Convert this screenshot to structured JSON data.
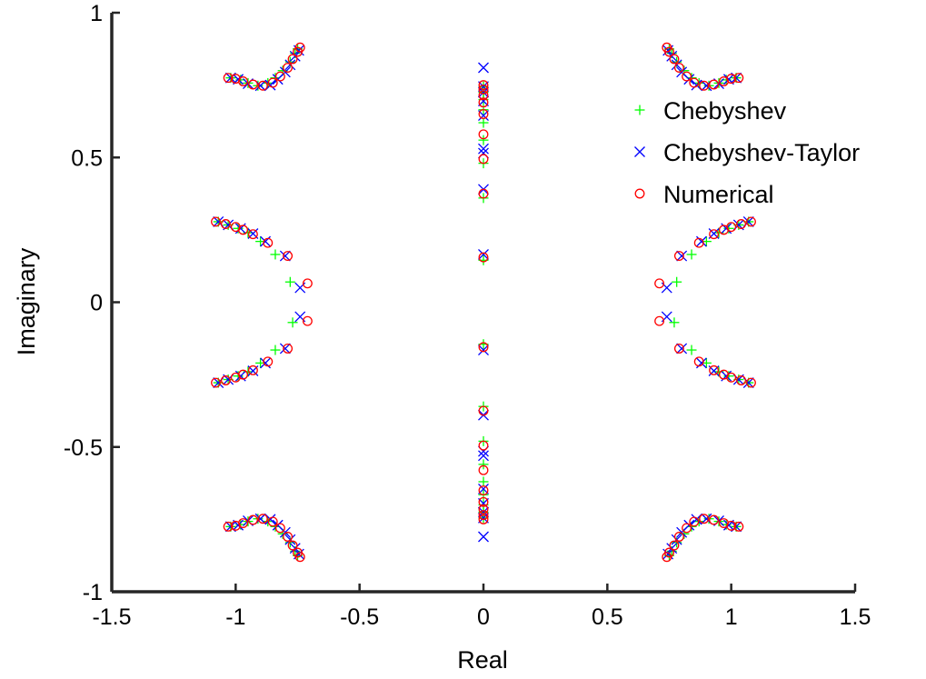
{
  "chart_data": {
    "type": "scatter",
    "title": "",
    "xlabel": "Real",
    "ylabel": "Imaginary",
    "xlim": [
      -1.5,
      1.5
    ],
    "ylim": [
      -1,
      1
    ],
    "xticks": [
      "-1.5",
      "-1",
      "-0.5",
      "0",
      "0.5",
      "1",
      "1.5"
    ],
    "yticks": [
      "-1",
      "-0.5",
      "0",
      "0.5",
      "1"
    ],
    "grid": false,
    "legend_placement": "top-right",
    "series": [
      {
        "name": "Chebyshev",
        "marker": "plus",
        "color": "#00ff00",
        "points": [
          [
            -1.02,
            0.775
          ],
          [
            -0.98,
            0.768
          ],
          [
            -0.95,
            0.757
          ],
          [
            -0.91,
            0.748
          ],
          [
            -0.87,
            0.757
          ],
          [
            -0.84,
            0.775
          ],
          [
            -0.81,
            0.8
          ],
          [
            -0.78,
            0.83
          ],
          [
            -0.76,
            0.86
          ],
          [
            -0.75,
            0.875
          ],
          [
            1.02,
            0.775
          ],
          [
            0.98,
            0.768
          ],
          [
            0.95,
            0.757
          ],
          [
            0.91,
            0.748
          ],
          [
            0.87,
            0.757
          ],
          [
            0.84,
            0.775
          ],
          [
            0.81,
            0.8
          ],
          [
            0.78,
            0.83
          ],
          [
            0.76,
            0.86
          ],
          [
            0.75,
            0.875
          ],
          [
            -1.02,
            -0.775
          ],
          [
            -0.98,
            -0.768
          ],
          [
            -0.95,
            -0.757
          ],
          [
            -0.91,
            -0.748
          ],
          [
            -0.87,
            -0.757
          ],
          [
            -0.84,
            -0.775
          ],
          [
            -0.81,
            -0.8
          ],
          [
            -0.78,
            -0.83
          ],
          [
            -0.76,
            -0.86
          ],
          [
            -0.75,
            -0.875
          ],
          [
            1.02,
            -0.775
          ],
          [
            0.98,
            -0.768
          ],
          [
            0.95,
            -0.757
          ],
          [
            0.91,
            -0.748
          ],
          [
            0.87,
            -0.757
          ],
          [
            0.84,
            -0.775
          ],
          [
            0.81,
            -0.8
          ],
          [
            0.78,
            -0.83
          ],
          [
            0.76,
            -0.86
          ],
          [
            0.75,
            -0.875
          ],
          [
            -1.07,
            0.278
          ],
          [
            -1.03,
            0.267
          ],
          [
            -0.99,
            0.255
          ],
          [
            -0.95,
            0.24
          ],
          [
            -0.9,
            0.21
          ],
          [
            -0.84,
            0.165
          ],
          [
            -0.78,
            0.07
          ],
          [
            -0.77,
            -0.07
          ],
          [
            -0.84,
            -0.165
          ],
          [
            -0.9,
            -0.21
          ],
          [
            -0.95,
            -0.24
          ],
          [
            -0.99,
            -0.255
          ],
          [
            -1.03,
            -0.267
          ],
          [
            -1.07,
            -0.278
          ],
          [
            1.07,
            0.278
          ],
          [
            1.03,
            0.267
          ],
          [
            0.99,
            0.255
          ],
          [
            0.95,
            0.24
          ],
          [
            0.9,
            0.21
          ],
          [
            0.84,
            0.165
          ],
          [
            0.78,
            0.07
          ],
          [
            0.77,
            -0.07
          ],
          [
            0.84,
            -0.165
          ],
          [
            0.9,
            -0.21
          ],
          [
            0.95,
            -0.24
          ],
          [
            0.99,
            -0.255
          ],
          [
            1.03,
            -0.267
          ],
          [
            1.07,
            -0.278
          ],
          [
            0,
            0.745
          ],
          [
            0,
            0.725
          ],
          [
            0,
            0.7
          ],
          [
            0,
            0.665
          ],
          [
            0,
            0.62
          ],
          [
            0,
            0.56
          ],
          [
            0,
            0.48
          ],
          [
            0,
            0.36
          ],
          [
            0,
            0.145
          ],
          [
            0,
            -0.745
          ],
          [
            0,
            -0.725
          ],
          [
            0,
            -0.7
          ],
          [
            0,
            -0.665
          ],
          [
            0,
            -0.62
          ],
          [
            0,
            -0.56
          ],
          [
            0,
            -0.48
          ],
          [
            0,
            -0.36
          ],
          [
            0,
            -0.145
          ]
        ]
      },
      {
        "name": "Chebyshev-Taylor",
        "marker": "x",
        "color": "#0000ff",
        "points": [
          [
            -1.02,
            0.775
          ],
          [
            -0.99,
            0.77
          ],
          [
            -0.95,
            0.755
          ],
          [
            -0.9,
            0.748
          ],
          [
            -0.86,
            0.75
          ],
          [
            -0.83,
            0.77
          ],
          [
            -0.8,
            0.795
          ],
          [
            -0.78,
            0.82
          ],
          [
            -0.76,
            0.85
          ],
          [
            -0.745,
            0.87
          ],
          [
            1.02,
            0.775
          ],
          [
            0.99,
            0.77
          ],
          [
            0.95,
            0.755
          ],
          [
            0.9,
            0.748
          ],
          [
            0.86,
            0.75
          ],
          [
            0.83,
            0.77
          ],
          [
            0.8,
            0.795
          ],
          [
            0.78,
            0.82
          ],
          [
            0.76,
            0.85
          ],
          [
            0.745,
            0.87
          ],
          [
            -1.02,
            -0.775
          ],
          [
            -0.99,
            -0.77
          ],
          [
            -0.95,
            -0.755
          ],
          [
            -0.9,
            -0.748
          ],
          [
            -0.86,
            -0.75
          ],
          [
            -0.83,
            -0.77
          ],
          [
            -0.8,
            -0.795
          ],
          [
            -0.78,
            -0.82
          ],
          [
            -0.76,
            -0.85
          ],
          [
            -0.745,
            -0.87
          ],
          [
            1.02,
            -0.775
          ],
          [
            0.99,
            -0.77
          ],
          [
            0.95,
            -0.755
          ],
          [
            0.9,
            -0.748
          ],
          [
            0.86,
            -0.75
          ],
          [
            0.83,
            -0.77
          ],
          [
            0.8,
            -0.795
          ],
          [
            0.78,
            -0.82
          ],
          [
            0.76,
            -0.85
          ],
          [
            0.745,
            -0.87
          ],
          [
            -1.07,
            0.278
          ],
          [
            -1.03,
            0.267
          ],
          [
            -0.98,
            0.255
          ],
          [
            -0.93,
            0.237
          ],
          [
            -0.88,
            0.21
          ],
          [
            -0.8,
            0.16
          ],
          [
            -0.74,
            0.05
          ],
          [
            -0.74,
            -0.05
          ],
          [
            -0.8,
            -0.16
          ],
          [
            -0.88,
            -0.21
          ],
          [
            -0.93,
            -0.237
          ],
          [
            -0.98,
            -0.255
          ],
          [
            -1.03,
            -0.267
          ],
          [
            -1.07,
            -0.278
          ],
          [
            1.07,
            0.278
          ],
          [
            1.03,
            0.267
          ],
          [
            0.98,
            0.255
          ],
          [
            0.93,
            0.237
          ],
          [
            0.88,
            0.21
          ],
          [
            0.8,
            0.16
          ],
          [
            0.74,
            0.05
          ],
          [
            0.74,
            -0.05
          ],
          [
            0.8,
            -0.16
          ],
          [
            0.88,
            -0.21
          ],
          [
            0.93,
            -0.237
          ],
          [
            0.98,
            -0.255
          ],
          [
            1.03,
            -0.267
          ],
          [
            1.07,
            -0.278
          ],
          [
            0,
            0.81
          ],
          [
            0,
            0.745
          ],
          [
            0,
            0.725
          ],
          [
            0,
            0.695
          ],
          [
            0,
            0.645
          ],
          [
            0,
            0.53
          ],
          [
            0,
            0.515
          ],
          [
            0,
            0.39
          ],
          [
            0,
            0.165
          ],
          [
            0,
            -0.81
          ],
          [
            0,
            -0.745
          ],
          [
            0,
            -0.725
          ],
          [
            0,
            -0.695
          ],
          [
            0,
            -0.645
          ],
          [
            0,
            -0.53
          ],
          [
            0,
            -0.515
          ],
          [
            0,
            -0.39
          ],
          [
            0,
            -0.165
          ]
        ]
      },
      {
        "name": "Numerical",
        "marker": "circle",
        "color": "#ff0000",
        "points": [
          [
            -1.03,
            0.775
          ],
          [
            -1.0,
            0.772
          ],
          [
            -0.97,
            0.763
          ],
          [
            -0.93,
            0.752
          ],
          [
            -0.89,
            0.748
          ],
          [
            -0.85,
            0.758
          ],
          [
            -0.82,
            0.78
          ],
          [
            -0.79,
            0.81
          ],
          [
            -0.77,
            0.84
          ],
          [
            -0.75,
            0.865
          ],
          [
            -0.74,
            0.88
          ],
          [
            1.03,
            0.775
          ],
          [
            1.0,
            0.772
          ],
          [
            0.97,
            0.763
          ],
          [
            0.93,
            0.752
          ],
          [
            0.89,
            0.748
          ],
          [
            0.85,
            0.758
          ],
          [
            0.82,
            0.78
          ],
          [
            0.79,
            0.81
          ],
          [
            0.77,
            0.84
          ],
          [
            0.75,
            0.865
          ],
          [
            0.74,
            0.88
          ],
          [
            -1.03,
            -0.775
          ],
          [
            -1.0,
            -0.772
          ],
          [
            -0.97,
            -0.763
          ],
          [
            -0.93,
            -0.752
          ],
          [
            -0.89,
            -0.748
          ],
          [
            -0.85,
            -0.758
          ],
          [
            -0.82,
            -0.78
          ],
          [
            -0.79,
            -0.81
          ],
          [
            -0.77,
            -0.84
          ],
          [
            -0.75,
            -0.865
          ],
          [
            -0.74,
            -0.88
          ],
          [
            1.03,
            -0.775
          ],
          [
            1.0,
            -0.772
          ],
          [
            0.97,
            -0.763
          ],
          [
            0.93,
            -0.752
          ],
          [
            0.89,
            -0.748
          ],
          [
            0.85,
            -0.758
          ],
          [
            0.82,
            -0.78
          ],
          [
            0.79,
            -0.81
          ],
          [
            0.77,
            -0.84
          ],
          [
            0.75,
            -0.865
          ],
          [
            0.74,
            -0.88
          ],
          [
            -1.08,
            0.278
          ],
          [
            -1.04,
            0.27
          ],
          [
            -1.0,
            0.26
          ],
          [
            -0.97,
            0.25
          ],
          [
            -0.93,
            0.235
          ],
          [
            -0.87,
            0.205
          ],
          [
            -0.79,
            0.16
          ],
          [
            -0.71,
            0.065
          ],
          [
            -0.71,
            -0.065
          ],
          [
            -0.79,
            -0.16
          ],
          [
            -0.87,
            -0.205
          ],
          [
            -0.93,
            -0.235
          ],
          [
            -0.97,
            -0.25
          ],
          [
            -1.0,
            -0.26
          ],
          [
            -1.04,
            -0.27
          ],
          [
            -1.08,
            -0.278
          ],
          [
            1.08,
            0.278
          ],
          [
            1.04,
            0.27
          ],
          [
            1.0,
            0.26
          ],
          [
            0.97,
            0.25
          ],
          [
            0.93,
            0.235
          ],
          [
            0.87,
            0.205
          ],
          [
            0.79,
            0.16
          ],
          [
            0.71,
            0.065
          ],
          [
            0.71,
            -0.065
          ],
          [
            0.79,
            -0.16
          ],
          [
            0.87,
            -0.205
          ],
          [
            0.93,
            -0.235
          ],
          [
            0.97,
            -0.25
          ],
          [
            1.0,
            -0.26
          ],
          [
            1.04,
            -0.27
          ],
          [
            1.08,
            -0.278
          ],
          [
            0,
            0.75
          ],
          [
            0,
            0.735
          ],
          [
            0,
            0.715
          ],
          [
            0,
            0.69
          ],
          [
            0,
            0.65
          ],
          [
            0,
            0.58
          ],
          [
            0,
            0.495
          ],
          [
            0,
            0.375
          ],
          [
            0,
            0.155
          ],
          [
            0,
            -0.75
          ],
          [
            0,
            -0.735
          ],
          [
            0,
            -0.715
          ],
          [
            0,
            -0.69
          ],
          [
            0,
            -0.65
          ],
          [
            0,
            -0.58
          ],
          [
            0,
            -0.495
          ],
          [
            0,
            -0.375
          ],
          [
            0,
            -0.155
          ]
        ]
      }
    ]
  }
}
